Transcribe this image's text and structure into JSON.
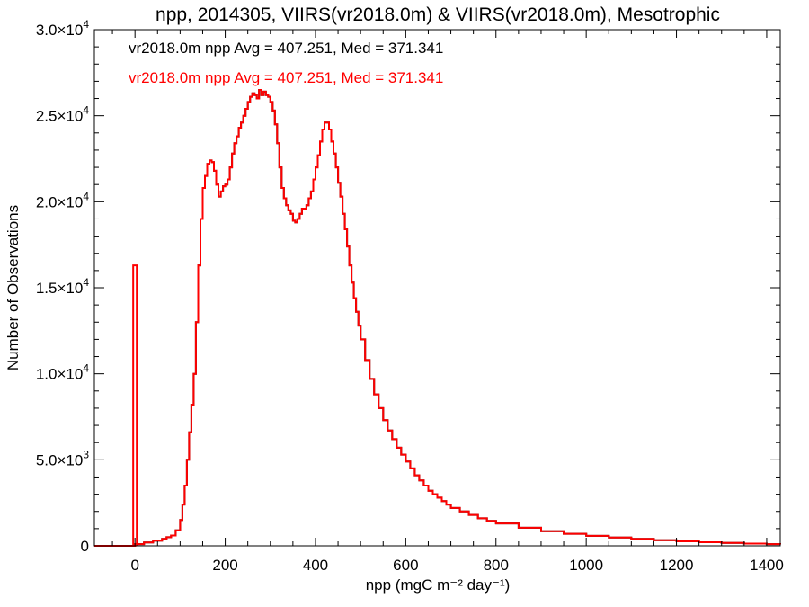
{
  "chart_data": {
    "type": "line",
    "title": "npp, 2014305, VIIRS(vr2018.0m) & VIIRS(vr2018.0m), Mesotrophic",
    "xlabel": "npp (mgC m⁻² day⁻¹)",
    "ylabel": "Number of Observations",
    "xlim": [
      -90,
      1430
    ],
    "ylim": [
      0,
      30000
    ],
    "x_ticks": [
      0,
      200,
      400,
      600,
      800,
      1000,
      1200,
      1400
    ],
    "y_ticks": [
      {
        "value": 0,
        "mantissa": "0",
        "exp": ""
      },
      {
        "value": 5000,
        "mantissa": "5.0×10",
        "exp": "3"
      },
      {
        "value": 10000,
        "mantissa": "1.0×10",
        "exp": "4"
      },
      {
        "value": 15000,
        "mantissa": "1.5×10",
        "exp": "4"
      },
      {
        "value": 20000,
        "mantissa": "2.0×10",
        "exp": "4"
      },
      {
        "value": 25000,
        "mantissa": "2.5×10",
        "exp": "4"
      },
      {
        "value": 30000,
        "mantissa": "3.0×10",
        "exp": "4"
      }
    ],
    "grid": false,
    "annotations": [
      {
        "text": "vr2018.0m npp Avg = 407.251, Med = 371.341",
        "color": "#000000"
      },
      {
        "text": "vr2018.0m npp Avg = 407.251, Med = 371.341",
        "color": "#ff0000"
      }
    ],
    "spike": {
      "x": 0,
      "y": 16300
    },
    "series": [
      {
        "color": "#000000",
        "step": true,
        "x": [
          -90,
          -40,
          0,
          20,
          40,
          60,
          70,
          80,
          90,
          100,
          105,
          110,
          115,
          120,
          125,
          130,
          135,
          140,
          145,
          150,
          155,
          160,
          165,
          170,
          175,
          180,
          185,
          190,
          195,
          200,
          205,
          210,
          215,
          220,
          225,
          230,
          235,
          240,
          245,
          250,
          255,
          260,
          265,
          270,
          275,
          280,
          285,
          290,
          295,
          300,
          305,
          310,
          315,
          320,
          325,
          330,
          335,
          340,
          345,
          350,
          355,
          360,
          365,
          370,
          375,
          380,
          385,
          390,
          395,
          400,
          405,
          410,
          415,
          420,
          425,
          430,
          435,
          440,
          445,
          450,
          455,
          460,
          465,
          470,
          475,
          480,
          485,
          490,
          495,
          500,
          510,
          520,
          530,
          540,
          550,
          560,
          570,
          580,
          590,
          600,
          610,
          620,
          630,
          640,
          650,
          660,
          670,
          680,
          690,
          700,
          720,
          740,
          760,
          780,
          800,
          850,
          900,
          950,
          1000,
          1050,
          1100,
          1150,
          1200,
          1250,
          1300,
          1350,
          1400,
          1430
        ],
        "y": [
          0,
          0,
          100,
          200,
          300,
          400,
          500,
          600,
          900,
          1500,
          2400,
          3500,
          5000,
          6600,
          8200,
          10000,
          13000,
          16300,
          19000,
          20800,
          21500,
          22200,
          22400,
          22300,
          21800,
          21000,
          20300,
          20600,
          20900,
          21000,
          21300,
          22000,
          22800,
          23400,
          23800,
          24300,
          24600,
          25000,
          25400,
          25800,
          26100,
          26300,
          26200,
          26000,
          26500,
          26200,
          26400,
          26200,
          26100,
          25800,
          25300,
          24500,
          23400,
          22000,
          20800,
          20200,
          19800,
          19500,
          19300,
          18900,
          18800,
          19000,
          19300,
          19600,
          19600,
          19800,
          20200,
          20600,
          21300,
          22000,
          22700,
          23500,
          24200,
          24600,
          24600,
          24200,
          23500,
          22800,
          22000,
          21100,
          20300,
          19300,
          18400,
          17400,
          16300,
          15300,
          14400,
          13600,
          12800,
          12000,
          10800,
          9700,
          8800,
          8000,
          7300,
          6700,
          6200,
          5700,
          5300,
          4900,
          4500,
          4100,
          3800,
          3500,
          3200,
          3000,
          2800,
          2600,
          2400,
          2200,
          2000,
          1800,
          1600,
          1450,
          1300,
          1050,
          850,
          700,
          580,
          480,
          400,
          330,
          260,
          210,
          170,
          130,
          100,
          80
        ]
      },
      {
        "color": "#ff0000",
        "step": true,
        "x": [
          -90,
          -40,
          0,
          20,
          40,
          60,
          70,
          80,
          90,
          100,
          105,
          110,
          115,
          120,
          125,
          130,
          135,
          140,
          145,
          150,
          155,
          160,
          165,
          170,
          175,
          180,
          185,
          190,
          195,
          200,
          205,
          210,
          215,
          220,
          225,
          230,
          235,
          240,
          245,
          250,
          255,
          260,
          265,
          270,
          275,
          280,
          285,
          290,
          295,
          300,
          305,
          310,
          315,
          320,
          325,
          330,
          335,
          340,
          345,
          350,
          355,
          360,
          365,
          370,
          375,
          380,
          385,
          390,
          395,
          400,
          405,
          410,
          415,
          420,
          425,
          430,
          435,
          440,
          445,
          450,
          455,
          460,
          465,
          470,
          475,
          480,
          485,
          490,
          495,
          500,
          510,
          520,
          530,
          540,
          550,
          560,
          570,
          580,
          590,
          600,
          610,
          620,
          630,
          640,
          650,
          660,
          670,
          680,
          690,
          700,
          720,
          740,
          760,
          780,
          800,
          850,
          900,
          950,
          1000,
          1050,
          1100,
          1150,
          1200,
          1250,
          1300,
          1350,
          1400,
          1430
        ],
        "y": [
          0,
          0,
          100,
          200,
          300,
          400,
          500,
          600,
          900,
          1500,
          2400,
          3500,
          5000,
          6600,
          8200,
          10000,
          13000,
          16300,
          19000,
          20800,
          21500,
          22200,
          22400,
          22300,
          21800,
          21000,
          20300,
          20600,
          20900,
          21000,
          21300,
          22000,
          22800,
          23400,
          23800,
          24300,
          24600,
          25000,
          25400,
          25800,
          26100,
          26300,
          26200,
          26000,
          26500,
          26200,
          26400,
          26200,
          26100,
          25800,
          25300,
          24500,
          23400,
          22000,
          20800,
          20200,
          19800,
          19500,
          19300,
          18900,
          18800,
          19000,
          19300,
          19600,
          19600,
          19800,
          20200,
          20600,
          21300,
          22000,
          22700,
          23500,
          24200,
          24600,
          24600,
          24200,
          23500,
          22800,
          22000,
          21100,
          20300,
          19300,
          18400,
          17400,
          16300,
          15300,
          14400,
          13600,
          12800,
          12000,
          10800,
          9700,
          8800,
          8000,
          7300,
          6700,
          6200,
          5700,
          5300,
          4900,
          4500,
          4100,
          3800,
          3500,
          3200,
          3000,
          2800,
          2600,
          2400,
          2200,
          2000,
          1800,
          1600,
          1450,
          1300,
          1050,
          850,
          700,
          580,
          480,
          400,
          330,
          260,
          210,
          170,
          130,
          100,
          80
        ]
      }
    ]
  }
}
